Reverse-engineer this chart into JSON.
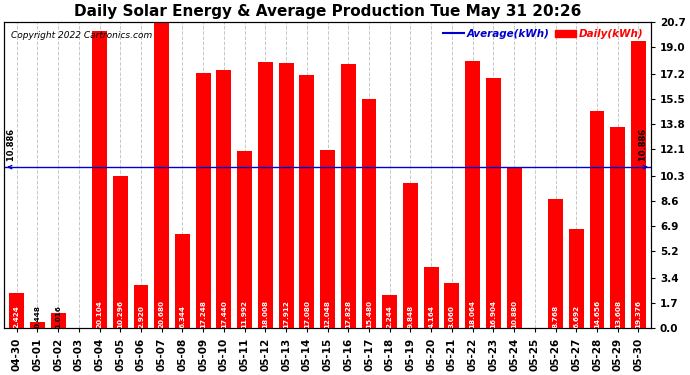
{
  "title": "Daily Solar Energy & Average Production Tue May 31 20:26",
  "copyright": "Copyright 2022 Cartronics.com",
  "average_label": "Average(kWh)",
  "daily_label": "Daily(kWh)",
  "average_value": 10.886,
  "categories": [
    "04-30",
    "05-01",
    "05-02",
    "05-03",
    "05-04",
    "05-05",
    "05-06",
    "05-07",
    "05-08",
    "05-09",
    "05-10",
    "05-11",
    "05-12",
    "05-13",
    "05-14",
    "05-15",
    "05-16",
    "05-17",
    "05-18",
    "05-19",
    "05-20",
    "05-21",
    "05-22",
    "05-23",
    "05-24",
    "05-25",
    "05-26",
    "05-27",
    "05-28",
    "05-29",
    "05-30"
  ],
  "values": [
    2.424,
    0.448,
    1.016,
    0.0,
    20.104,
    10.296,
    2.92,
    20.68,
    6.344,
    17.248,
    17.44,
    11.992,
    18.008,
    17.912,
    17.08,
    12.048,
    17.828,
    15.48,
    2.244,
    9.848,
    4.164,
    3.06,
    18.064,
    16.904,
    10.88,
    0.0,
    8.768,
    6.692,
    14.656,
    13.608,
    19.376
  ],
  "bar_color": "#ff0000",
  "average_line_color": "#0000cc",
  "yticks_right": [
    0.0,
    1.7,
    3.4,
    5.2,
    6.9,
    8.6,
    10.3,
    12.1,
    13.8,
    15.5,
    17.2,
    19.0,
    20.7
  ],
  "ylim": [
    0.0,
    20.7
  ],
  "background_color": "#ffffff",
  "grid_color": "#c8c8c8",
  "title_fontsize": 11,
  "bar_label_fontsize": 5.2,
  "tick_fontsize": 7.5,
  "legend_fontsize": 7.5,
  "copyright_fontsize": 6.5
}
